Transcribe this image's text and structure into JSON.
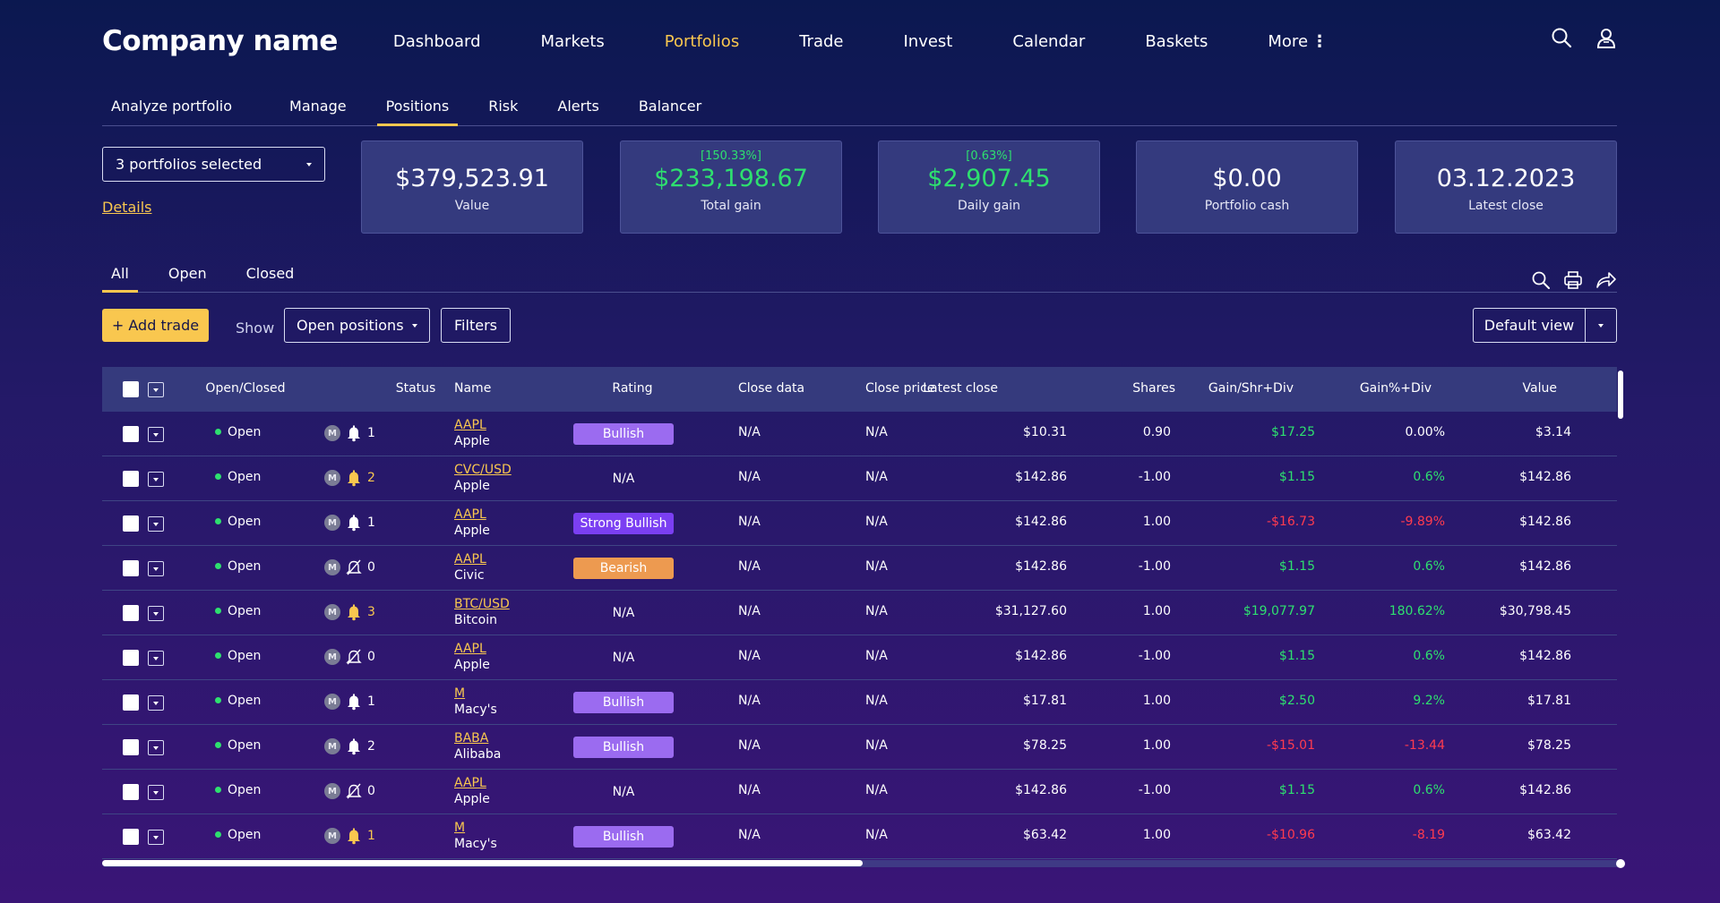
{
  "brand": "Company name",
  "nav": {
    "items": [
      "Dashboard",
      "Markets",
      "Portfolios",
      "Trade",
      "Invest",
      "Calendar",
      "Baskets",
      "More"
    ],
    "active": "Portfolios"
  },
  "subtabs": {
    "items": [
      "Analyze portfolio",
      "Manage",
      "Positions",
      "Risk",
      "Alerts",
      "Balancer"
    ],
    "active": "Positions"
  },
  "portfolio_select": {
    "value": "3 portfolios selected"
  },
  "details_link": "Details",
  "cards": [
    {
      "pct": "",
      "value": "$379,523.91",
      "label": "Value",
      "green": false
    },
    {
      "pct": "[150.33%]",
      "value": "$233,198.67",
      "label": "Total gain",
      "green": true
    },
    {
      "pct": "[0.63%]",
      "value": "$2,907.45",
      "label": "Daily gain",
      "green": true
    },
    {
      "pct": "",
      "value": "$0.00",
      "label": "Portfolio cash",
      "green": false
    },
    {
      "pct": "",
      "value": "03.12.2023",
      "label": "Latest close",
      "green": false
    }
  ],
  "filter_tabs": {
    "items": [
      "All",
      "Open",
      "Closed"
    ],
    "active": "All"
  },
  "actions": {
    "add_trade": "+ Add trade",
    "show_label": "Show",
    "show_value": "Open positions",
    "filters": "Filters",
    "default_view": "Default view"
  },
  "table": {
    "headers": [
      "Open/Closed",
      "Status",
      "Name",
      "Rating",
      "Close data",
      "Close price",
      "Latest close",
      "Shares",
      "Gain/Shr+Div",
      "Gain%+Div",
      "Value"
    ],
    "rows": [
      {
        "state": "Open",
        "badge": "M",
        "bell": "white",
        "alerts": "1",
        "ticker": "AAPL",
        "company": "Apple",
        "rating": "Bullish",
        "close_data": "N/A",
        "close_price": "N/A",
        "latest_close": "$10.31",
        "shares": "0.90",
        "gain_shr": "$17.25",
        "gain_shr_color": "green",
        "gain_pct": "0.00%",
        "gain_pct_color": "white",
        "value": "$3.14"
      },
      {
        "state": "Open",
        "badge": "M",
        "bell": "yellow",
        "alerts": "2",
        "ticker": "CVC/USD",
        "company": "Apple",
        "rating": "N/A",
        "close_data": "N/A",
        "close_price": "N/A",
        "latest_close": "$142.86",
        "shares": "-1.00",
        "gain_shr": "$1.15",
        "gain_shr_color": "green",
        "gain_pct": "0.6%",
        "gain_pct_color": "green",
        "value": "$142.86"
      },
      {
        "state": "Open",
        "badge": "M",
        "bell": "white",
        "alerts": "1",
        "ticker": "AAPL",
        "company": "Apple",
        "rating": "Strong Bullish",
        "close_data": "N/A",
        "close_price": "N/A",
        "latest_close": "$142.86",
        "shares": "1.00",
        "gain_shr": "-$16.73",
        "gain_shr_color": "red",
        "gain_pct": "-9.89%",
        "gain_pct_color": "red",
        "value": "$142.86"
      },
      {
        "state": "Open",
        "badge": "M",
        "bell": "off",
        "alerts": "0",
        "ticker": "AAPL",
        "company": "Civic",
        "rating": "Bearish",
        "close_data": "N/A",
        "close_price": "N/A",
        "latest_close": "$142.86",
        "shares": "-1.00",
        "gain_shr": "$1.15",
        "gain_shr_color": "green",
        "gain_pct": "0.6%",
        "gain_pct_color": "green",
        "value": "$142.86"
      },
      {
        "state": "Open",
        "badge": "M",
        "bell": "yellow",
        "alerts": "3",
        "ticker": "BTC/USD",
        "company": "Bitcoin",
        "rating": "N/A",
        "close_data": "N/A",
        "close_price": "N/A",
        "latest_close": "$31,127.60",
        "shares": "1.00",
        "gain_shr": "$19,077.97",
        "gain_shr_color": "green",
        "gain_pct": "180.62%",
        "gain_pct_color": "green",
        "value": "$30,798.45"
      },
      {
        "state": "Open",
        "badge": "M",
        "bell": "off",
        "alerts": "0",
        "ticker": "AAPL",
        "company": "Apple",
        "rating": "N/A",
        "close_data": "N/A",
        "close_price": "N/A",
        "latest_close": "$142.86",
        "shares": "-1.00",
        "gain_shr": "$1.15",
        "gain_shr_color": "green",
        "gain_pct": "0.6%",
        "gain_pct_color": "green",
        "value": "$142.86"
      },
      {
        "state": "Open",
        "badge": "M",
        "bell": "white",
        "alerts": "1",
        "ticker": "M",
        "company": "Macy's",
        "rating": "Bullish",
        "close_data": "N/A",
        "close_price": "N/A",
        "latest_close": "$17.81",
        "shares": "1.00",
        "gain_shr": "$2.50",
        "gain_shr_color": "green",
        "gain_pct": "9.2%",
        "gain_pct_color": "green",
        "value": "$17.81"
      },
      {
        "state": "Open",
        "badge": "M",
        "bell": "white",
        "alerts": "2",
        "ticker": "BABA",
        "company": "Alibaba",
        "rating": "Bullish",
        "close_data": "N/A",
        "close_price": "N/A",
        "latest_close": "$78.25",
        "shares": "1.00",
        "gain_shr": "-$15.01",
        "gain_shr_color": "red",
        "gain_pct": "-13.44",
        "gain_pct_color": "red",
        "value": "$78.25"
      },
      {
        "state": "Open",
        "badge": "M",
        "bell": "off",
        "alerts": "0",
        "ticker": "AAPL",
        "company": "Apple",
        "rating": "N/A",
        "close_data": "N/A",
        "close_price": "N/A",
        "latest_close": "$142.86",
        "shares": "-1.00",
        "gain_shr": "$1.15",
        "gain_shr_color": "green",
        "gain_pct": "0.6%",
        "gain_pct_color": "green",
        "value": "$142.86"
      },
      {
        "state": "Open",
        "badge": "M",
        "bell": "yellow",
        "alerts": "1",
        "ticker": "M",
        "company": "Macy's",
        "rating": "Bullish",
        "close_data": "N/A",
        "close_price": "N/A",
        "latest_close": "$63.42",
        "shares": "1.00",
        "gain_shr": "-$10.96",
        "gain_shr_color": "red",
        "gain_pct": "-8.19",
        "gain_pct_color": "red",
        "value": "$63.42"
      }
    ]
  },
  "colors": {
    "accent": "#f9c74f",
    "positive": "#2ee06f",
    "negative": "#ff3b4f",
    "bullish": "#9b6bf0",
    "strong_bullish": "#7b3ff2",
    "bearish": "#ed9a50"
  },
  "icons": {
    "search": "search-icon",
    "user": "user-icon",
    "print": "print-icon",
    "share": "share-icon",
    "bell": "bell-icon",
    "bell_off": "bell-off-icon"
  }
}
